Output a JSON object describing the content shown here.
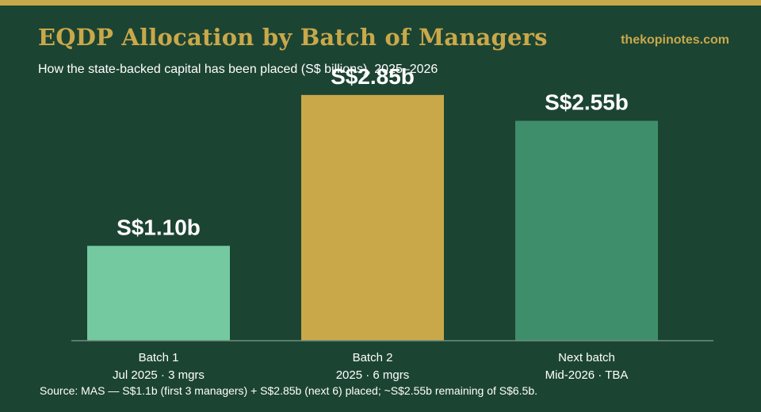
{
  "header": {
    "title": "EQDP Allocation by Batch of Managers",
    "subtitle": "How the state-backed capital has been placed (S$ billions), 2025–2026",
    "brand": "thekopinotes.com"
  },
  "footer": {
    "source": "Source: MAS — S$1.1b (first 3 managers) + S$2.85b (next 6) placed; ~S$2.55b remaining of S$6.5b."
  },
  "colors": {
    "background": "#1c4433",
    "accent": "#c9a84a",
    "batch1": "#74c9a0",
    "batch2": "#c9a84a",
    "next_batch": "#3f8e6b",
    "axis": "#6e8f80",
    "text": "#ffffff"
  },
  "chart_data": {
    "type": "bar",
    "categories": [
      "Batch 1",
      "Batch 2",
      "Next batch"
    ],
    "sublabels": [
      "Jul 2025 · 3 mgrs",
      "2025 · 6 mgrs",
      "Mid-2026 · TBA"
    ],
    "values": [
      1.1,
      2.85,
      2.55
    ],
    "value_labels": [
      "S$1.10b",
      "S$2.85b",
      "S$2.55b"
    ],
    "bar_colors": [
      "#74c9a0",
      "#c9a84a",
      "#3f8e6b"
    ],
    "ylim": [
      0,
      3.4
    ],
    "grid": false,
    "legend": "none",
    "xlabel": "",
    "ylabel": ""
  }
}
